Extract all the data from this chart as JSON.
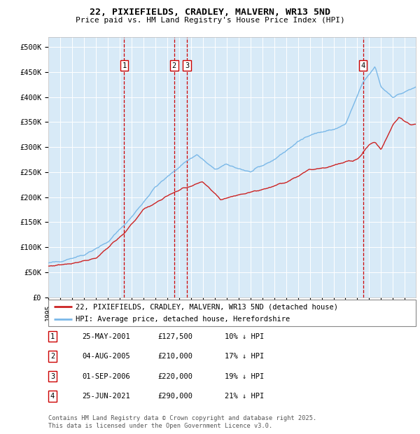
{
  "title_line1": "22, PIXIEFIELDS, CRADLEY, MALVERN, WR13 5ND",
  "title_line2": "Price paid vs. HM Land Registry's House Price Index (HPI)",
  "yticks": [
    0,
    50000,
    100000,
    150000,
    200000,
    250000,
    300000,
    350000,
    400000,
    450000,
    500000
  ],
  "ytick_labels": [
    "£0",
    "£50K",
    "£100K",
    "£150K",
    "£200K",
    "£250K",
    "£300K",
    "£350K",
    "£400K",
    "£450K",
    "£500K"
  ],
  "xlim_start": 1995.0,
  "xlim_end": 2025.92,
  "ylim": [
    0,
    520000
  ],
  "bg_color": "#d8eaf7",
  "grid_color": "#ffffff",
  "hpi_color": "#7ab8e8",
  "price_color": "#cc2222",
  "sale_points": [
    {
      "x": 2001.39,
      "label": "1"
    },
    {
      "x": 2005.59,
      "label": "2"
    },
    {
      "x": 2006.67,
      "label": "3"
    },
    {
      "x": 2021.48,
      "label": "4"
    }
  ],
  "legend_entries": [
    "22, PIXIEFIELDS, CRADLEY, MALVERN, WR13 5ND (detached house)",
    "HPI: Average price, detached house, Herefordshire"
  ],
  "table_rows": [
    {
      "num": "1",
      "date": "25-MAY-2001",
      "price": "£127,500",
      "hpi": "10% ↓ HPI"
    },
    {
      "num": "2",
      "date": "04-AUG-2005",
      "price": "£210,000",
      "hpi": "17% ↓ HPI"
    },
    {
      "num": "3",
      "date": "01-SEP-2006",
      "price": "£220,000",
      "hpi": "19% ↓ HPI"
    },
    {
      "num": "4",
      "date": "25-JUN-2021",
      "price": "£290,000",
      "hpi": "21% ↓ HPI"
    }
  ],
  "footnote": "Contains HM Land Registry data © Crown copyright and database right 2025.\nThis data is licensed under the Open Government Licence v3.0."
}
